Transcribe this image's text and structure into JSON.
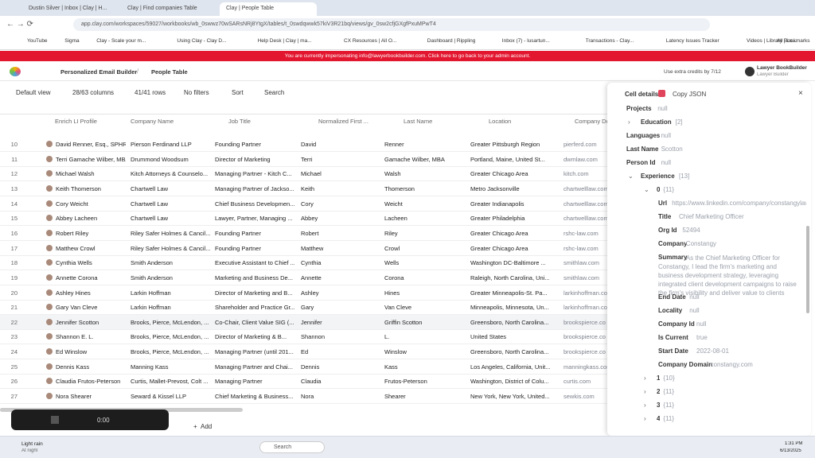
{
  "browser": {
    "tabs": [
      "Dustin Silver | Inbox | Clay | H...",
      "Clay | Find companies Table",
      "Clay | People Table"
    ],
    "url": "app.clay.com/workspaces/59027/workbooks/wb_0swwz70wSARsNRj8YtgX/tables/t_0swdqwwk57kiV3R21bq/views/gv_0sw2cfjGXgfPxuMPwT4",
    "bookmarks": [
      "YouTube",
      "Sigma",
      "Clay - Scale your m...",
      "Using Clay - Clay D...",
      "Help Desk | Clay | ma...",
      "CX Resources | All O...",
      "Dashboard | Rippling",
      "Inbox (7) - lusartun...",
      "Transactions - Clay...",
      "Latency Issues Tracker",
      "Videos | Library | Lo...",
      "All Bookmarks"
    ]
  },
  "banner": "You are currently impersonating info@lawyerbookbuilder.com. Click here to go back to your admin account.",
  "header": {
    "workbook": "Personalized Email Builder",
    "table": "People Table",
    "credits": "Use extra credits by 7/12",
    "user": "Lawyer BookBuilder",
    "user_sub": "Lawyer Builder"
  },
  "toolbar": {
    "view": "Default view",
    "columns": "28/63 columns",
    "rows": "41/41 rows",
    "filters": "No filters",
    "sort": "Sort",
    "search": "Search"
  },
  "table": {
    "columns": [
      "Enrich LI Profile",
      "Company Name",
      "Job Title",
      "Normalized First ...",
      "Last Name",
      "Location",
      "Company Do..."
    ],
    "rows": [
      [
        "10",
        "David Renner, Esq., SPHR",
        "Pierson Ferdinand LLP",
        "Founding Partner",
        "David",
        "Renner",
        "Greater Pittsburgh Region",
        "pierferd.com"
      ],
      [
        "11",
        "Terri Gamache Wilber, MBA",
        "Drummond Woodsum",
        "Director of Marketing",
        "Terri",
        "Gamache Wilber, MBA",
        "Portland, Maine, United St...",
        "dwmlaw.com"
      ],
      [
        "12",
        "Michael Walsh",
        "Kitch Attorneys & Counselo...",
        "Managing Partner - Kitch C...",
        "Michael",
        "Walsh",
        "Greater Chicago Area",
        "kitch.com"
      ],
      [
        "13",
        "Keith Thomerson",
        "Chartwell Law",
        "Managing Partner of Jackso...",
        "Keith",
        "Thomerson",
        "Metro Jacksonville",
        "chartwelllaw.com"
      ],
      [
        "14",
        "Cory Weicht",
        "Chartwell Law",
        "Chief Business Developmen...",
        "Cory",
        "Weicht",
        "Greater Indianapolis",
        "chartwelllaw.com"
      ],
      [
        "15",
        "Abbey Lacheen",
        "Chartwell Law",
        "Lawyer, Partner, Managing ...",
        "Abbey",
        "Lacheen",
        "Greater Philadelphia",
        "chartwelllaw.com"
      ],
      [
        "16",
        "Robert Riley",
        "Riley Safer Holmes & Cancil...",
        "Founding Partner",
        "Robert",
        "Riley",
        "Greater Chicago Area",
        "rshc-law.com"
      ],
      [
        "17",
        "Matthew Crowl",
        "Riley Safer Holmes & Cancil...",
        "Founding Partner",
        "Matthew",
        "Crowl",
        "Greater Chicago Area",
        "rshc-law.com"
      ],
      [
        "18",
        "Cynthia Wells",
        "Smith Anderson",
        "Executive Assistant to Chief ...",
        "Cynthia",
        "Wells",
        "Washington DC-Baltimore ...",
        "smithlaw.com"
      ],
      [
        "19",
        "Annette Corona",
        "Smith Anderson",
        "Marketing and Business De...",
        "Annette",
        "Corona",
        "Raleigh, North Carolina, Uni...",
        "smithlaw.com"
      ],
      [
        "20",
        "Ashley Hines",
        "Larkin Hoffman",
        "Director of Marketing and B...",
        "Ashley",
        "Hines",
        "Greater Minneapolis-St. Pa...",
        "larkinhoffman.co"
      ],
      [
        "21",
        "Gary Van Cleve",
        "Larkin Hoffman",
        "Shareholder and Practice Gr...",
        "Gary",
        "Van Cleve",
        "Minneapolis, Minnesota, Un...",
        "larkinhoffman.co"
      ],
      [
        "22",
        "Jennifer Scotton",
        "Brooks, Pierce, McLendon, ...",
        "Co-Chair, Client Value SIG (...",
        "Jennifer",
        "Griffin Scotton",
        "Greensboro, North Carolina...",
        "brookspierce.co"
      ],
      [
        "23",
        "Shannon E. L.",
        "Brooks, Pierce, McLendon, ...",
        "Director of Marketing & B...",
        "Shannon",
        "L.",
        "United States",
        "brookspierce.co"
      ],
      [
        "24",
        "Ed Winslow",
        "Brooks, Pierce, McLendon, ...",
        "Managing Partner (until 201...",
        "Ed",
        "Winslow",
        "Greensboro, North Carolina...",
        "brookspierce.co"
      ],
      [
        "25",
        "Dennis Kass",
        "Manning Kass",
        "Managing Partner and Chai...",
        "Dennis",
        "Kass",
        "Los Angeles, California, Unit...",
        "manningkass.com"
      ],
      [
        "26",
        "Claudia Frutos-Peterson",
        "Curtis, Mallet-Prevost, Colt ...",
        "Managing Partner",
        "Claudia",
        "Frutos-Peterson",
        "Washington, District of Colu...",
        "curtis.com"
      ],
      [
        "27",
        "Nora Shearer",
        "Seward & Kissel LLP",
        "Chief Marketing & Business...",
        "Nora",
        "Shearer",
        "New York, New York, United...",
        "sewkis.com"
      ]
    ],
    "add": "Add"
  },
  "panel": {
    "title": "Cell details",
    "copy": "Copy JSON",
    "items": [
      {
        "key": "Projects",
        "value": "null"
      },
      {
        "key": "Education",
        "value": "[2]"
      },
      {
        "key": "Languages",
        "value": "null"
      },
      {
        "key": "Last Name",
        "value": "Scotton"
      },
      {
        "key": "Person Id",
        "value": "null"
      },
      {
        "key": "Experience",
        "value": "[13]"
      },
      {
        "key": "0",
        "value": "{11}"
      },
      {
        "key": "Url",
        "value": "https://www.linkedin.com/company/constangylaw"
      },
      {
        "key": "Title",
        "value": "Chief Marketing Officer"
      },
      {
        "key": "Org Id",
        "value": "52494"
      },
      {
        "key": "Company",
        "value": "Constangy"
      },
      {
        "key": "Summary",
        "value": "As the Chief Marketing Officer for Constangy, I lead the firm's marketing and business development strategy, leveraging integrated client development campaigns to raise the firm's visibility and deliver value to clients"
      },
      {
        "key": "End Date",
        "value": "null"
      },
      {
        "key": "Locality",
        "value": "null"
      },
      {
        "key": "Company Id",
        "value": "null"
      },
      {
        "key": "Is Current",
        "value": "true"
      },
      {
        "key": "Start Date",
        "value": "2022-08-01"
      },
      {
        "key": "Company Domain",
        "value": "constangy.com"
      },
      {
        "key": "1",
        "value": "{10}"
      },
      {
        "key": "2",
        "value": "{11}"
      },
      {
        "key": "3",
        "value": "{11}"
      },
      {
        "key": "4",
        "value": "{11}"
      }
    ]
  },
  "video": {
    "time": "0:00"
  },
  "taskbar": {
    "weather": "Light rain",
    "weather_sub": "At night",
    "search": "Search",
    "time": "1:31 PM",
    "date": "6/13/2025"
  }
}
